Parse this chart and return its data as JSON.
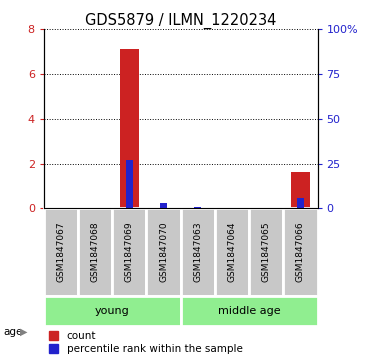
{
  "title": "GDS5879 / ILMN_1220234",
  "samples": [
    "GSM1847067",
    "GSM1847068",
    "GSM1847069",
    "GSM1847070",
    "GSM1847063",
    "GSM1847064",
    "GSM1847065",
    "GSM1847066"
  ],
  "count_values": [
    0,
    0,
    7.1,
    0,
    0,
    0,
    0,
    1.6
  ],
  "percentile_values": [
    0,
    0,
    27,
    3,
    1,
    0,
    0,
    6
  ],
  "ylim_left": [
    0,
    8
  ],
  "ylim_right": [
    0,
    100
  ],
  "yticks_left": [
    0,
    2,
    4,
    6,
    8
  ],
  "yticks_right": [
    0,
    25,
    50,
    75,
    100
  ],
  "ytick_labels_right": [
    "0",
    "25",
    "50",
    "75",
    "100%"
  ],
  "groups": [
    {
      "label": "young",
      "start": 0,
      "end": 4
    },
    {
      "label": "middle age",
      "start": 4,
      "end": 8
    }
  ],
  "group_color": "#90EE90",
  "sample_box_color": "#c8c8c8",
  "bar_color_red": "#cc2222",
  "bar_color_blue": "#2222cc",
  "bar_width": 0.55,
  "blue_bar_width": 0.2,
  "grid_color": "black",
  "age_label": "age",
  "legend_count_label": "count",
  "legend_pct_label": "percentile rank within the sample",
  "title_fontsize": 10.5,
  "tick_fontsize": 8,
  "sample_fontsize": 6.5,
  "group_fontsize": 8,
  "legend_fontsize": 7.5
}
